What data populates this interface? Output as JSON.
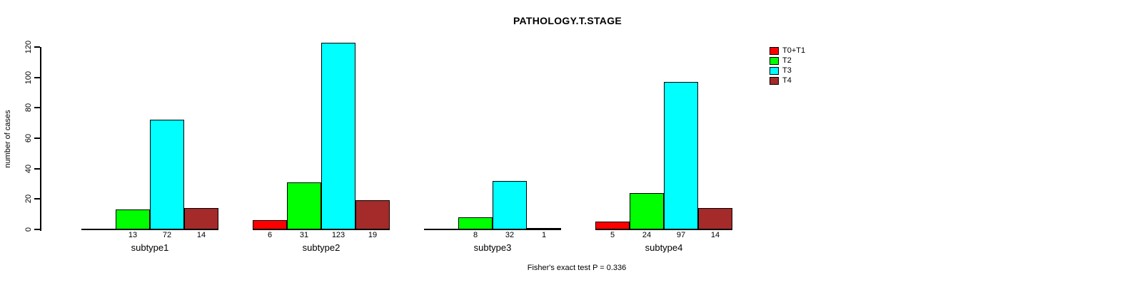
{
  "chart_data": {
    "type": "bar",
    "title": "PATHOLOGY.T.STAGE",
    "ylabel": "number of cases",
    "xlabel": "",
    "ylim": [
      0,
      120
    ],
    "yticks": [
      0,
      20,
      40,
      60,
      80,
      100,
      120
    ],
    "grid": false,
    "legend_position": "top-right",
    "categories": [
      "subtype1",
      "subtype2",
      "subtype3",
      "subtype4"
    ],
    "series": [
      {
        "name": "T0+T1",
        "color": "#FF0000",
        "values": [
          0,
          6,
          0,
          5
        ]
      },
      {
        "name": "T2",
        "color": "#00FF00",
        "values": [
          13,
          31,
          8,
          24
        ]
      },
      {
        "name": "T3",
        "color": "#00FFFF",
        "values": [
          72,
          123,
          32,
          97
        ]
      },
      {
        "name": "T4",
        "color": "#A52A2A",
        "values": [
          14,
          19,
          1,
          14
        ]
      }
    ],
    "value_labels": {
      "shown_below_bars": true,
      "zero_values_unlabeled": true
    },
    "footnote": "Fisher's exact test P = 0.336"
  }
}
